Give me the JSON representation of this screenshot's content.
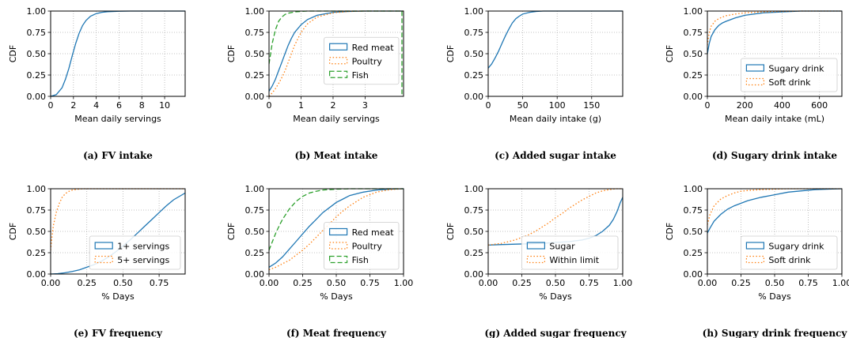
{
  "chart_data": [
    {
      "id": "a",
      "type": "line",
      "caption": "(a) FV intake",
      "xlabel": "Mean daily servings",
      "ylabel": "CDF",
      "xlim": [
        0,
        11.8
      ],
      "ylim": [
        0,
        1
      ],
      "xticks": [
        0,
        2,
        4,
        6,
        8,
        10
      ],
      "xticklabels": [
        "0",
        "2",
        "4",
        "6",
        "8",
        "10"
      ],
      "yticks": [
        0,
        0.25,
        0.5,
        0.75,
        1
      ],
      "yticklabels": [
        "0.00",
        "0.25",
        "0.50",
        "0.75",
        "1.00"
      ],
      "grid": true,
      "legend": null,
      "series": [
        {
          "style": "solid",
          "color": "#1f77b4",
          "x": [
            0,
            0.5,
            1,
            1.3,
            1.6,
            1.9,
            2.2,
            2.5,
            2.8,
            3.1,
            3.5,
            4,
            4.5,
            5,
            6,
            7,
            11.8
          ],
          "y": [
            0,
            0.02,
            0.1,
            0.2,
            0.33,
            0.48,
            0.62,
            0.74,
            0.83,
            0.89,
            0.94,
            0.97,
            0.985,
            0.993,
            0.998,
            1,
            1
          ]
        }
      ]
    },
    {
      "id": "b",
      "type": "line",
      "caption": "(b) Meat intake",
      "xlabel": "Mean daily servings",
      "ylabel": "CDF",
      "xlim": [
        0,
        4.2
      ],
      "ylim": [
        0,
        1
      ],
      "xticks": [
        0,
        1,
        2,
        3
      ],
      "xticklabels": [
        "0",
        "1",
        "2",
        "3"
      ],
      "yticks": [
        0,
        0.25,
        0.5,
        0.75,
        1
      ],
      "yticklabels": [
        "0.00",
        "0.25",
        "0.50",
        "0.75",
        "1.00"
      ],
      "grid": true,
      "legend": "center-right",
      "series": [
        {
          "name": "Red meat",
          "style": "solid",
          "color": "#1f77b4",
          "x": [
            0,
            0.1,
            0.2,
            0.3,
            0.4,
            0.5,
            0.6,
            0.7,
            0.8,
            1,
            1.2,
            1.5,
            2,
            2.5,
            3,
            4.2
          ],
          "y": [
            0.06,
            0.12,
            0.2,
            0.3,
            0.4,
            0.5,
            0.6,
            0.68,
            0.75,
            0.84,
            0.9,
            0.95,
            0.985,
            0.995,
            1,
            1
          ]
        },
        {
          "name": "Poultry",
          "style": "dotted",
          "color": "#ff7f0e",
          "x": [
            0,
            0.1,
            0.2,
            0.3,
            0.4,
            0.5,
            0.6,
            0.7,
            0.8,
            1,
            1.2,
            1.5,
            2,
            2.5,
            3,
            4.2
          ],
          "y": [
            0,
            0.04,
            0.09,
            0.15,
            0.22,
            0.3,
            0.4,
            0.5,
            0.6,
            0.75,
            0.85,
            0.93,
            0.98,
            0.995,
            1,
            1
          ]
        },
        {
          "name": "Fish",
          "style": "dashed",
          "color": "#2ca02c",
          "x": [
            0,
            0.05,
            0.1,
            0.2,
            0.3,
            0.4,
            0.5,
            0.6,
            0.8,
            1,
            1.2,
            1.5,
            2,
            4.15,
            4.15
          ],
          "y": [
            0.38,
            0.5,
            0.62,
            0.78,
            0.88,
            0.93,
            0.96,
            0.975,
            0.99,
            0.995,
            1,
            1,
            1,
            1,
            0
          ]
        }
      ]
    },
    {
      "id": "c",
      "type": "line",
      "caption": "(c) Added sugar intake",
      "xlabel": "Mean daily intake (g)",
      "ylabel": "CDF",
      "xlim": [
        0,
        195
      ],
      "ylim": [
        0,
        1
      ],
      "xticks": [
        0,
        50,
        100,
        150
      ],
      "xticklabels": [
        "0",
        "50",
        "100",
        "150"
      ],
      "yticks": [
        0,
        0.25,
        0.5,
        0.75,
        1
      ],
      "yticklabels": [
        "0.00",
        "0.25",
        "0.50",
        "0.75",
        "1.00"
      ],
      "grid": true,
      "legend": null,
      "series": [
        {
          "style": "solid",
          "color": "#1f77b4",
          "x": [
            0,
            2,
            5,
            10,
            15,
            20,
            25,
            30,
            35,
            40,
            45,
            50,
            60,
            70,
            80,
            100,
            195
          ],
          "y": [
            0.33,
            0.35,
            0.38,
            0.45,
            0.53,
            0.62,
            0.71,
            0.79,
            0.86,
            0.91,
            0.94,
            0.965,
            0.985,
            0.995,
            1,
            1,
            1
          ]
        }
      ]
    },
    {
      "id": "d",
      "type": "line",
      "caption": "(d) Sugary drink intake",
      "xlabel": "Mean daily intake (mL)",
      "ylabel": "CDF",
      "xlim": [
        0,
        720
      ],
      "ylim": [
        0,
        1
      ],
      "xticks": [
        0,
        200,
        400,
        600
      ],
      "xticklabels": [
        "0",
        "200",
        "400",
        "600"
      ],
      "yticks": [
        0,
        0.25,
        0.5,
        0.75,
        1
      ],
      "yticklabels": [
        "0.00",
        "0.25",
        "0.50",
        "0.75",
        "1.00"
      ],
      "grid": true,
      "legend": "lower-right",
      "series": [
        {
          "name": "Sugary drink",
          "style": "solid",
          "color": "#1f77b4",
          "x": [
            0,
            5,
            10,
            20,
            40,
            60,
            80,
            100,
            150,
            200,
            300,
            400,
            500,
            720
          ],
          "y": [
            0.5,
            0.56,
            0.62,
            0.7,
            0.78,
            0.83,
            0.86,
            0.88,
            0.92,
            0.95,
            0.98,
            0.99,
            1,
            1
          ]
        },
        {
          "name": "Soft drink",
          "style": "dotted",
          "color": "#ff7f0e",
          "x": [
            0,
            5,
            10,
            20,
            40,
            60,
            80,
            100,
            150,
            200,
            300,
            400,
            500,
            720
          ],
          "y": [
            0.6,
            0.68,
            0.75,
            0.82,
            0.88,
            0.91,
            0.93,
            0.945,
            0.965,
            0.98,
            0.99,
            0.995,
            1,
            1
          ]
        }
      ]
    },
    {
      "id": "e",
      "type": "line",
      "caption": "(e) FV frequency",
      "xlabel": "% Days",
      "ylabel": "CDF",
      "xlim": [
        0,
        0.93
      ],
      "ylim": [
        0,
        1
      ],
      "xticks": [
        0,
        0.25,
        0.5,
        0.75
      ],
      "xticklabels": [
        "0.00",
        "0.25",
        "0.50",
        "0.75"
      ],
      "yticks": [
        0,
        0.25,
        0.5,
        0.75,
        1
      ],
      "yticklabels": [
        "0.00",
        "0.25",
        "0.50",
        "0.75",
        "1.00"
      ],
      "grid": true,
      "legend": "lower-right",
      "series": [
        {
          "name": "1+ servings",
          "style": "solid",
          "color": "#1f77b4",
          "x": [
            0,
            0.05,
            0.1,
            0.15,
            0.2,
            0.25,
            0.3,
            0.35,
            0.4,
            0.45,
            0.5,
            0.55,
            0.6,
            0.65,
            0.7,
            0.75,
            0.8,
            0.85,
            0.93
          ],
          "y": [
            0,
            0.005,
            0.015,
            0.03,
            0.05,
            0.08,
            0.11,
            0.15,
            0.2,
            0.26,
            0.33,
            0.4,
            0.48,
            0.56,
            0.64,
            0.72,
            0.8,
            0.87,
            0.95
          ]
        },
        {
          "name": "5+ servings",
          "style": "dotted",
          "color": "#ff7f0e",
          "x": [
            0,
            0.01,
            0.02,
            0.04,
            0.06,
            0.08,
            0.1,
            0.12,
            0.15,
            0.18,
            0.22,
            0.3,
            0.4,
            0.93
          ],
          "y": [
            0.28,
            0.45,
            0.58,
            0.73,
            0.83,
            0.9,
            0.94,
            0.965,
            0.985,
            0.993,
            1,
            1,
            1,
            1
          ]
        }
      ]
    },
    {
      "id": "f",
      "type": "line",
      "caption": "(f) Meat frequency",
      "xlabel": "% Days",
      "ylabel": "CDF",
      "xlim": [
        0,
        1
      ],
      "ylim": [
        0,
        1
      ],
      "xticks": [
        0,
        0.25,
        0.5,
        0.75,
        1
      ],
      "xticklabels": [
        "0.00",
        "0.25",
        "0.50",
        "0.75",
        "1.00"
      ],
      "yticks": [
        0,
        0.25,
        0.5,
        0.75,
        1
      ],
      "yticklabels": [
        "0.00",
        "0.25",
        "0.50",
        "0.75",
        "1.00"
      ],
      "grid": true,
      "legend": "lower-right",
      "series": [
        {
          "name": "Red meat",
          "style": "solid",
          "color": "#1f77b4",
          "x": [
            0,
            0.05,
            0.1,
            0.15,
            0.2,
            0.25,
            0.3,
            0.35,
            0.4,
            0.45,
            0.5,
            0.55,
            0.6,
            0.7,
            0.8,
            0.9,
            1
          ],
          "y": [
            0.08,
            0.13,
            0.2,
            0.29,
            0.38,
            0.47,
            0.56,
            0.64,
            0.72,
            0.78,
            0.84,
            0.88,
            0.92,
            0.96,
            0.985,
            0.995,
            1
          ]
        },
        {
          "name": "Poultry",
          "style": "dotted",
          "color": "#ff7f0e",
          "x": [
            0,
            0.05,
            0.1,
            0.15,
            0.2,
            0.25,
            0.3,
            0.35,
            0.4,
            0.45,
            0.5,
            0.55,
            0.6,
            0.7,
            0.8,
            0.9,
            1
          ],
          "y": [
            0.05,
            0.08,
            0.12,
            0.16,
            0.22,
            0.28,
            0.35,
            0.43,
            0.51,
            0.59,
            0.67,
            0.74,
            0.8,
            0.9,
            0.96,
            0.99,
            1
          ]
        },
        {
          "name": "Fish",
          "style": "dashed",
          "color": "#2ca02c",
          "x": [
            0,
            0.02,
            0.05,
            0.08,
            0.1,
            0.15,
            0.2,
            0.25,
            0.3,
            0.35,
            0.4,
            0.5,
            0.6,
            1
          ],
          "y": [
            0.28,
            0.36,
            0.48,
            0.58,
            0.64,
            0.76,
            0.85,
            0.91,
            0.95,
            0.97,
            0.985,
            0.995,
            1,
            1
          ]
        }
      ]
    },
    {
      "id": "g",
      "type": "line",
      "caption": "(g) Added sugar frequency",
      "xlabel": "% Days",
      "ylabel": "CDF",
      "xlim": [
        0,
        1
      ],
      "ylim": [
        0,
        1
      ],
      "xticks": [
        0,
        0.25,
        0.5,
        0.75,
        1
      ],
      "xticklabels": [
        "0.00",
        "0.25",
        "0.50",
        "0.75",
        "1.00"
      ],
      "yticks": [
        0,
        0.25,
        0.5,
        0.75,
        1
      ],
      "yticklabels": [
        "0.00",
        "0.25",
        "0.50",
        "0.75",
        "1.00"
      ],
      "grid": true,
      "legend": "lower-right",
      "series": [
        {
          "name": "Sugar",
          "style": "solid",
          "color": "#1f77b4",
          "x": [
            0,
            0.1,
            0.2,
            0.3,
            0.4,
            0.5,
            0.6,
            0.7,
            0.75,
            0.8,
            0.85,
            0.9,
            0.93,
            0.96,
            0.98,
            1
          ],
          "y": [
            0.34,
            0.345,
            0.35,
            0.355,
            0.36,
            0.37,
            0.38,
            0.4,
            0.42,
            0.45,
            0.5,
            0.57,
            0.64,
            0.74,
            0.83,
            0.9
          ]
        },
        {
          "name": "Within limit",
          "style": "dotted",
          "color": "#ff7f0e",
          "x": [
            0,
            0.05,
            0.1,
            0.15,
            0.2,
            0.25,
            0.3,
            0.35,
            0.4,
            0.45,
            0.5,
            0.55,
            0.6,
            0.65,
            0.7,
            0.75,
            0.8,
            0.85,
            0.9,
            0.95,
            1
          ],
          "y": [
            0.34,
            0.35,
            0.36,
            0.38,
            0.4,
            0.43,
            0.46,
            0.5,
            0.55,
            0.6,
            0.66,
            0.71,
            0.77,
            0.82,
            0.87,
            0.91,
            0.95,
            0.975,
            0.99,
            1,
            1
          ]
        }
      ]
    },
    {
      "id": "h",
      "type": "line",
      "caption": "(h) Sugary drink frequency",
      "xlabel": "% Days",
      "ylabel": "CDF",
      "xlim": [
        0,
        1
      ],
      "ylim": [
        0,
        1
      ],
      "xticks": [
        0,
        0.25,
        0.5,
        0.75,
        1
      ],
      "xticklabels": [
        "0.00",
        "0.25",
        "0.50",
        "0.75",
        "1.00"
      ],
      "yticks": [
        0,
        0.25,
        0.5,
        0.75,
        1
      ],
      "yticklabels": [
        "0.00",
        "0.25",
        "0.50",
        "0.75",
        "1.00"
      ],
      "grid": true,
      "legend": "lower-right",
      "series": [
        {
          "name": "Sugary drink",
          "style": "solid",
          "color": "#1f77b4",
          "x": [
            0,
            0.02,
            0.05,
            0.1,
            0.15,
            0.2,
            0.25,
            0.3,
            0.4,
            0.5,
            0.6,
            0.7,
            0.8,
            0.9,
            1
          ],
          "y": [
            0.48,
            0.54,
            0.62,
            0.7,
            0.76,
            0.8,
            0.83,
            0.86,
            0.9,
            0.93,
            0.96,
            0.975,
            0.99,
            0.995,
            1
          ]
        },
        {
          "name": "Soft drink",
          "style": "dotted",
          "color": "#ff7f0e",
          "x": [
            0,
            0.02,
            0.05,
            0.1,
            0.15,
            0.2,
            0.25,
            0.3,
            0.4,
            0.5,
            0.6,
            0.7,
            0.8,
            1
          ],
          "y": [
            0.58,
            0.7,
            0.8,
            0.88,
            0.92,
            0.95,
            0.97,
            0.98,
            0.99,
            0.995,
            1,
            1,
            1,
            1
          ]
        }
      ]
    }
  ]
}
